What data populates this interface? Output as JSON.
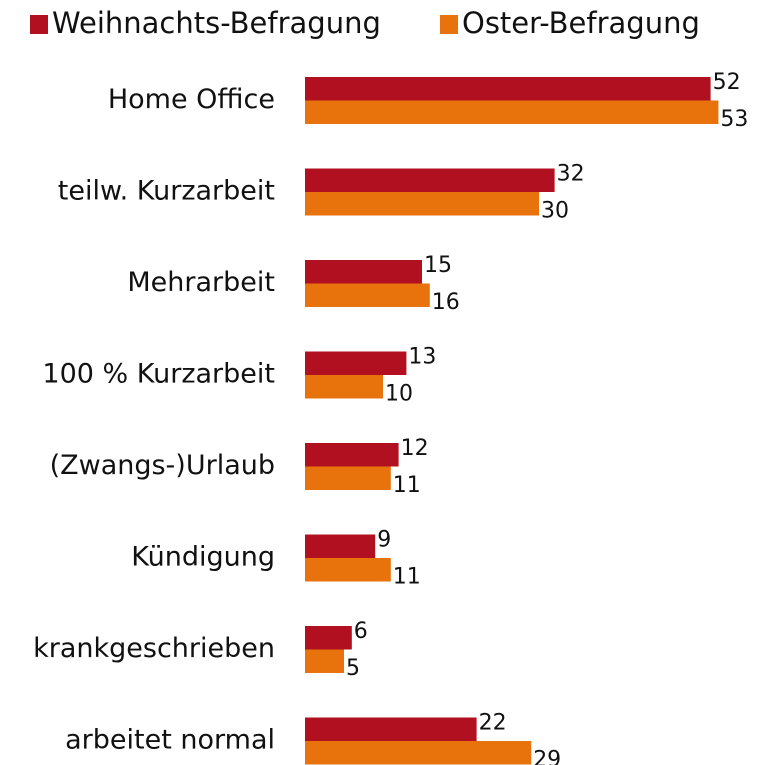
{
  "chart_data": {
    "type": "bar",
    "orientation": "horizontal",
    "categories": [
      "Home Office",
      "teilw. Kurzarbeit",
      "Mehrarbeit",
      "100 % Kurzarbeit",
      "(Zwangs-)Urlaub",
      "Kündigung",
      "krankgeschrieben",
      "arbeitet normal"
    ],
    "series": [
      {
        "name": "Weihnachts-Befragung",
        "color": "#b0101f",
        "values": [
          52,
          32,
          15,
          13,
          12,
          9,
          6,
          22
        ]
      },
      {
        "name": "Oster-Befragung",
        "color": "#e8720c",
        "values": [
          53,
          30,
          16,
          10,
          11,
          11,
          5,
          29
        ]
      }
    ],
    "legend": "top-left"
  }
}
